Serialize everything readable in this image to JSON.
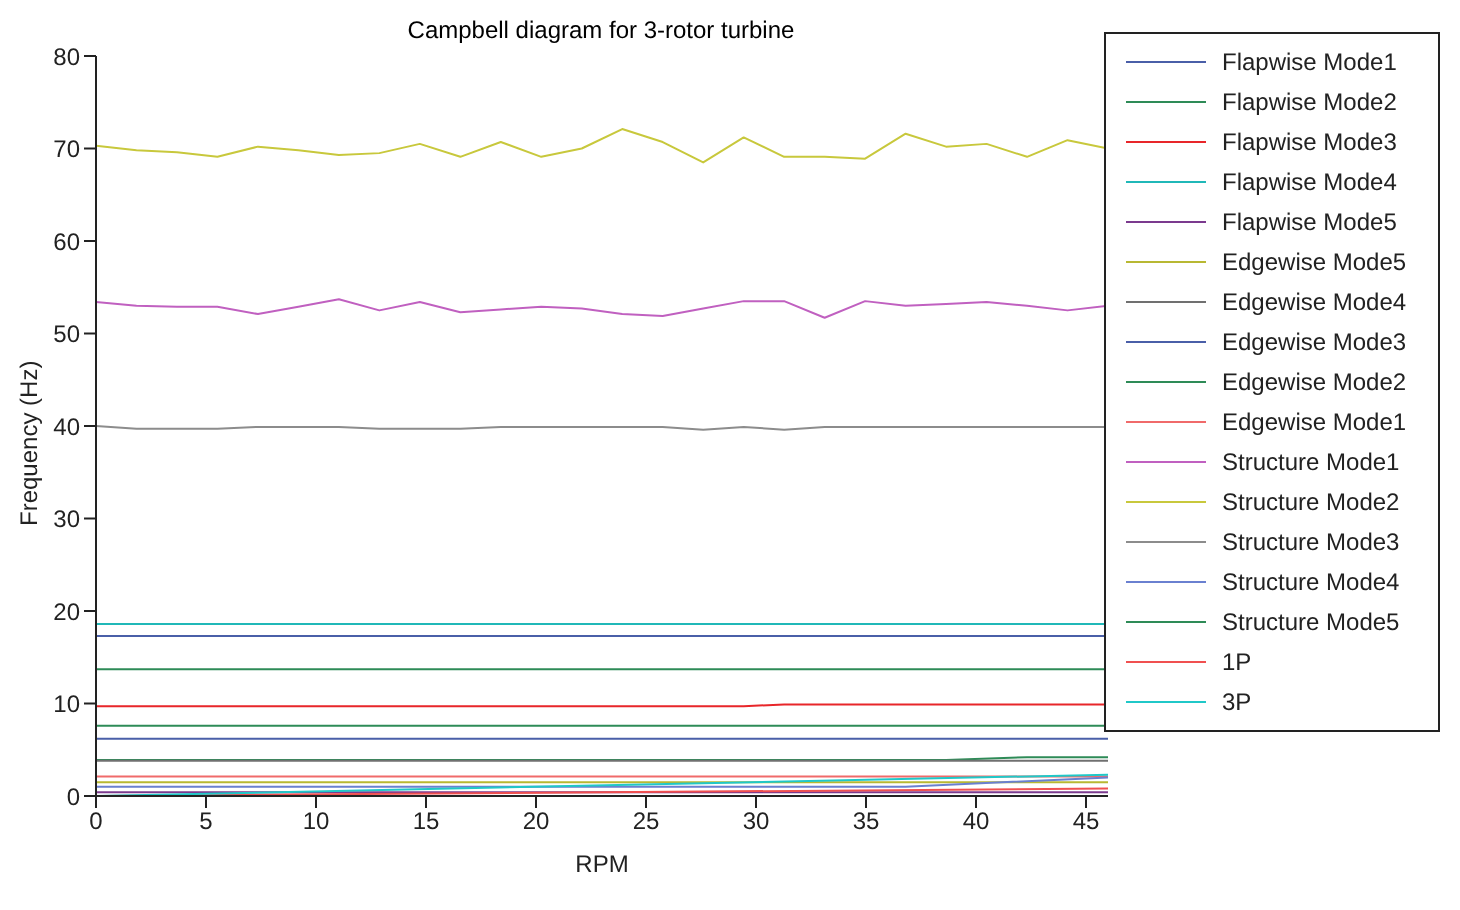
{
  "chart_data": {
    "type": "line",
    "title": "Campbell diagram for 3-rotor turbine",
    "xlabel": "RPM",
    "ylabel": "Frequency (Hz)",
    "x": [
      0,
      1.84,
      3.68,
      5.52,
      7.36,
      9.2,
      11.04,
      12.88,
      14.72,
      16.56,
      18.4,
      20.24,
      22.08,
      23.92,
      25.76,
      27.6,
      29.44,
      31.28,
      33.12,
      34.96,
      36.8,
      38.64,
      40.48,
      42.32,
      44.16,
      46
    ],
    "xlim": [
      0,
      46
    ],
    "xticks": [
      0,
      5,
      10,
      15,
      20,
      25,
      30,
      35,
      40,
      45
    ],
    "ylim": [
      0,
      80
    ],
    "yticks": [
      0,
      10,
      20,
      30,
      40,
      50,
      60,
      70,
      80
    ],
    "legend": "right",
    "marker": "none",
    "line_style": "solid",
    "series": [
      {
        "name": "Flapwise Mode1",
        "color": "#4a5fa8",
        "x": [
          0,
          46
        ],
        "values": [
          6.2,
          6.2
        ]
      },
      {
        "name": "Flapwise Mode2",
        "color": "#2e8b57",
        "x": [
          0,
          38.64,
          42.32,
          46
        ],
        "values": [
          3.9,
          3.9,
          4.2,
          4.2
        ]
      },
      {
        "name": "Flapwise Mode3",
        "color": "#e8262a",
        "x": [
          0,
          29.44,
          31.28,
          46
        ],
        "values": [
          9.7,
          9.7,
          9.9,
          9.9
        ]
      },
      {
        "name": "Flapwise Mode4",
        "color": "#20b8b8",
        "x": [
          0,
          46
        ],
        "values": [
          18.6,
          18.6
        ]
      },
      {
        "name": "Flapwise Mode5",
        "color": "#7b3a8e",
        "x": [
          0,
          46
        ],
        "values": [
          0.4,
          0.4
        ]
      },
      {
        "name": "Edgewise Mode5",
        "color": "#b8b832",
        "x": [
          0,
          46
        ],
        "values": [
          1.5,
          1.5
        ]
      },
      {
        "name": "Edgewise Mode4",
        "color": "#707070",
        "x": [
          0,
          46
        ],
        "values": [
          3.8,
          3.8
        ]
      },
      {
        "name": "Edgewise Mode3",
        "color": "#4a5fa8",
        "x": [
          0,
          46
        ],
        "values": [
          17.3,
          17.3
        ]
      },
      {
        "name": "Edgewise Mode2",
        "color": "#2e8b57",
        "x": [
          0,
          46
        ],
        "values": [
          13.7,
          13.7
        ]
      },
      {
        "name": "Edgewise Mode1",
        "color": "#f06a6a",
        "x": [
          0,
          46
        ],
        "values": [
          2.1,
          2.1
        ]
      },
      {
        "name": "Structure Mode1",
        "color": "#c060c0",
        "values": [
          53.4,
          53.0,
          52.9,
          52.9,
          52.1,
          52.9,
          53.7,
          52.5,
          53.4,
          52.3,
          52.6,
          52.9,
          52.7,
          52.1,
          51.9,
          52.7,
          53.5,
          53.5,
          51.7,
          53.5,
          53.0,
          53.2,
          53.4,
          53.0,
          52.5,
          53.0
        ]
      },
      {
        "name": "Structure Mode2",
        "color": "#c8c83c",
        "values": [
          70.3,
          69.8,
          69.6,
          69.1,
          70.2,
          69.8,
          69.3,
          69.5,
          70.5,
          69.1,
          70.7,
          69.1,
          70.0,
          72.1,
          70.7,
          68.5,
          71.2,
          69.1,
          69.1,
          68.9,
          71.6,
          70.2,
          70.5,
          69.1,
          70.9,
          70.0
        ]
      },
      {
        "name": "Structure Mode3",
        "color": "#8c8c8c",
        "values": [
          40.0,
          39.7,
          39.7,
          39.7,
          39.9,
          39.9,
          39.9,
          39.7,
          39.7,
          39.7,
          39.9,
          39.9,
          39.9,
          39.9,
          39.9,
          39.6,
          39.9,
          39.6,
          39.9,
          39.9,
          39.9,
          39.9,
          39.9,
          39.9,
          39.9,
          39.9
        ]
      },
      {
        "name": "Structure Mode4",
        "color": "#6a80d0",
        "x": [
          0,
          36.8,
          46
        ],
        "values": [
          1.0,
          1.0,
          2.0
        ]
      },
      {
        "name": "Structure Mode5",
        "color": "#2e8b57",
        "x": [
          0,
          46
        ],
        "values": [
          7.6,
          7.6
        ]
      },
      {
        "name": "1P",
        "color": "#f05050",
        "x": [
          0,
          46
        ],
        "values": [
          0,
          0.8
        ]
      },
      {
        "name": "3P",
        "color": "#20c8c8",
        "x": [
          0,
          46
        ],
        "values": [
          0,
          2.3
        ]
      }
    ]
  }
}
